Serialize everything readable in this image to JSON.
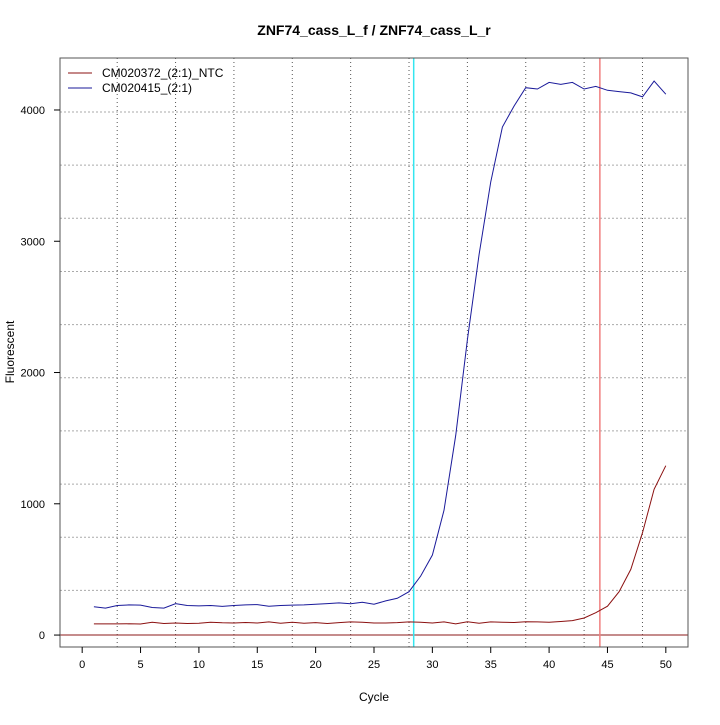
{
  "chart_data": {
    "type": "line",
    "title": "ZNF74_cass_L_f / ZNF74_cass_L_r",
    "xlabel": "Cycle",
    "ylabel": "Fluorescent",
    "xlim": [
      -1.9,
      51.9
    ],
    "ylim": [
      -91,
      4396
    ],
    "xticks": [
      0,
      5,
      10,
      15,
      20,
      25,
      30,
      35,
      40,
      45,
      50
    ],
    "yticks": [
      0,
      1000,
      2000,
      3000,
      4000
    ],
    "x_grid": [
      3,
      8,
      13,
      18,
      23,
      28,
      33,
      38,
      43,
      48
    ],
    "y_grid": [
      340,
      745,
      1150,
      1555,
      1960,
      2365,
      2770,
      3175,
      3580,
      3985
    ],
    "legend_position": "top-left",
    "vlines": [
      {
        "x": 28.4,
        "color": "#33e6f0"
      },
      {
        "x": 44.35,
        "color": "#f08080"
      }
    ],
    "hlines": [
      {
        "y": 0,
        "color": "#8b1a1a"
      }
    ],
    "x": [
      1,
      2,
      3,
      4,
      5,
      6,
      7,
      8,
      9,
      10,
      11,
      12,
      13,
      14,
      15,
      16,
      17,
      18,
      19,
      20,
      21,
      22,
      23,
      24,
      25,
      26,
      27,
      28,
      29,
      30,
      31,
      32,
      33,
      34,
      35,
      36,
      37,
      38,
      39,
      40,
      41,
      42,
      43,
      44,
      45,
      46,
      47,
      48,
      49,
      50
    ],
    "series": [
      {
        "name": "CM020372_(2:1)_NTC",
        "color": "#8b1010",
        "values": [
          85,
          85,
          85,
          86,
          84,
          98,
          88,
          92,
          88,
          90,
          98,
          93,
          92,
          96,
          92,
          100,
          90,
          98,
          90,
          95,
          88,
          95,
          100,
          98,
          92,
          92,
          95,
          100,
          98,
          92,
          100,
          85,
          102,
          90,
          100,
          98,
          96,
          102,
          100,
          98,
          103,
          110,
          130,
          170,
          220,
          330,
          500,
          780,
          1110,
          1290
        ]
      },
      {
        "name": "CM020415_(2:1)",
        "color": "#1a1a9a",
        "values": [
          215,
          205,
          225,
          230,
          228,
          210,
          205,
          240,
          225,
          222,
          225,
          218,
          225,
          230,
          232,
          220,
          225,
          228,
          230,
          235,
          240,
          245,
          238,
          250,
          235,
          260,
          280,
          330,
          450,
          610,
          950,
          1520,
          2250,
          2900,
          3450,
          3870,
          4030,
          4170,
          4160,
          4210,
          4195,
          4210,
          4160,
          4180,
          4150,
          4140,
          4130,
          4100,
          4220,
          4120
        ]
      }
    ]
  }
}
